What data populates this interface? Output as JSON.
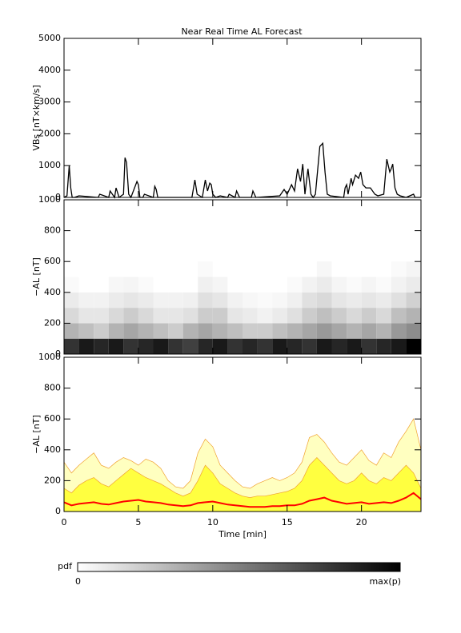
{
  "chart_data": [
    {
      "type": "line",
      "title": "Near Real Time AL Forecast",
      "ylabel": "VBs [nT×km/s]",
      "color": "#000000",
      "xlim": [
        0,
        24
      ],
      "xticks": [
        0,
        5,
        10,
        15,
        20
      ],
      "xtick_labels": false,
      "ylim": [
        0,
        5000
      ],
      "yticks": [
        0,
        1000,
        2000,
        3000,
        4000,
        5000
      ],
      "x": [
        0,
        0.2,
        0.35,
        0.45,
        0.55,
        0.7,
        1.0,
        2.3,
        2.4,
        3.0,
        3.1,
        3.4,
        3.5,
        3.7,
        4.0,
        4.1,
        4.2,
        4.35,
        4.5,
        4.9,
        5.0,
        5.1,
        5.3,
        5.4,
        6.0,
        6.1,
        6.2,
        6.3,
        8.6,
        8.8,
        8.95,
        9.3,
        9.5,
        9.65,
        9.8,
        9.9,
        10.0,
        10.2,
        10.5,
        11.0,
        11.1,
        11.5,
        11.6,
        11.8,
        12.6,
        12.7,
        12.9,
        14.5,
        14.8,
        15.0,
        15.3,
        15.5,
        15.7,
        15.9,
        16.05,
        16.2,
        16.4,
        16.6,
        16.75,
        16.9,
        17.2,
        17.4,
        17.55,
        17.7,
        17.9,
        18.8,
        18.9,
        19.0,
        19.1,
        19.3,
        19.4,
        19.6,
        19.8,
        19.95,
        20.1,
        20.3,
        20.6,
        20.9,
        21.1,
        21.5,
        21.7,
        21.9,
        22.0,
        22.1,
        22.25,
        22.4,
        22.6,
        23.0,
        23.5,
        23.6,
        24.0
      ],
      "values": [
        0,
        50,
        1000,
        300,
        0,
        0,
        50,
        0,
        100,
        0,
        200,
        0,
        300,
        0,
        100,
        1250,
        1100,
        100,
        0,
        500,
        400,
        0,
        0,
        100,
        0,
        350,
        250,
        0,
        0,
        550,
        100,
        0,
        550,
        200,
        450,
        400,
        100,
        0,
        50,
        0,
        100,
        0,
        200,
        0,
        0,
        200,
        0,
        50,
        250,
        100,
        400,
        200,
        900,
        500,
        1050,
        100,
        900,
        100,
        0,
        100,
        1600,
        1700,
        800,
        100,
        50,
        0,
        300,
        400,
        100,
        600,
        400,
        700,
        600,
        800,
        400,
        300,
        300,
        100,
        50,
        100,
        1200,
        800,
        900,
        1050,
        300,
        100,
        50,
        0,
        100,
        0,
        0
      ]
    },
    {
      "type": "heatmap",
      "ylabel": "−AL [nT]",
      "xlim": [
        0,
        24
      ],
      "xticks": [
        0,
        5,
        10,
        15,
        20
      ],
      "xtick_labels": false,
      "ylim": [
        0,
        1000
      ],
      "yticks": [
        0,
        200,
        400,
        600,
        800,
        1000
      ],
      "x_bins": [
        0,
        1,
        2,
        3,
        4,
        5,
        6,
        7,
        8,
        9,
        10,
        11,
        12,
        13,
        14,
        15,
        16,
        17,
        18,
        19,
        20,
        21,
        22,
        23,
        24
      ],
      "y_bins": [
        0,
        100,
        200,
        300,
        400,
        500,
        600
      ],
      "values": [
        [
          0.8,
          0.9,
          0.85,
          0.9,
          0.8,
          0.85,
          0.9,
          0.8,
          0.75,
          0.85,
          0.9,
          0.8,
          0.85,
          0.8,
          0.9,
          0.85,
          0.8,
          0.9,
          0.85,
          0.9,
          0.8,
          0.85,
          0.9,
          1.0
        ],
        [
          0.3,
          0.25,
          0.2,
          0.3,
          0.35,
          0.3,
          0.25,
          0.2,
          0.3,
          0.35,
          0.3,
          0.25,
          0.2,
          0.2,
          0.25,
          0.3,
          0.35,
          0.4,
          0.35,
          0.3,
          0.35,
          0.3,
          0.4,
          0.45
        ],
        [
          0.15,
          0.1,
          0.1,
          0.15,
          0.2,
          0.15,
          0.1,
          0.1,
          0.12,
          0.2,
          0.2,
          0.1,
          0.08,
          0.05,
          0.08,
          0.12,
          0.2,
          0.25,
          0.2,
          0.15,
          0.2,
          0.15,
          0.25,
          0.3
        ],
        [
          0.08,
          0.05,
          0.05,
          0.08,
          0.1,
          0.08,
          0.05,
          0.05,
          0.06,
          0.12,
          0.1,
          0.05,
          0.03,
          0.02,
          0.03,
          0.06,
          0.12,
          0.15,
          0.1,
          0.08,
          0.1,
          0.08,
          0.12,
          0.18
        ],
        [
          0.02,
          0,
          0,
          0.03,
          0.04,
          0.02,
          0,
          0,
          0,
          0.06,
          0.04,
          0,
          0,
          0,
          0,
          0.02,
          0.05,
          0.08,
          0.04,
          0.02,
          0.04,
          0.02,
          0.05,
          0.08
        ],
        [
          0,
          0,
          0,
          0,
          0,
          0,
          0,
          0,
          0,
          0.02,
          0,
          0,
          0,
          0,
          0,
          0,
          0,
          0.03,
          0,
          0,
          0,
          0,
          0.02,
          0.04
        ]
      ],
      "colorbar": {
        "label": "pdf",
        "min_label": "0",
        "max_label": "max(p)"
      }
    },
    {
      "type": "area",
      "ylabel": "−AL [nT]",
      "xlabel": "Time [min]",
      "xlim": [
        0,
        24
      ],
      "xticks": [
        0,
        5,
        10,
        15,
        20
      ],
      "xtick_labels": true,
      "ylim": [
        0,
        1000
      ],
      "yticks": [
        0,
        200,
        400,
        600,
        800,
        1000
      ],
      "x": [
        0,
        0.5,
        1,
        1.5,
        2,
        2.5,
        3,
        3.5,
        4,
        4.5,
        5,
        5.5,
        6,
        6.5,
        7,
        7.5,
        8,
        8.5,
        9,
        9.5,
        10,
        10.5,
        11,
        11.5,
        12,
        12.5,
        13,
        13.5,
        14,
        14.5,
        15,
        15.5,
        16,
        16.5,
        17,
        17.5,
        18,
        18.5,
        19,
        19.5,
        20,
        20.5,
        21,
        21.5,
        22,
        22.5,
        23,
        23.5,
        24
      ],
      "series": [
        {
          "color": "#ffffc0",
          "fill": true,
          "values": [
            320,
            250,
            300,
            340,
            380,
            300,
            280,
            320,
            350,
            330,
            300,
            340,
            320,
            280,
            200,
            160,
            150,
            200,
            380,
            470,
            420,
            300,
            250,
            200,
            160,
            150,
            180,
            200,
            220,
            200,
            220,
            250,
            320,
            480,
            500,
            450,
            380,
            320,
            300,
            350,
            400,
            330,
            300,
            380,
            350,
            450,
            520,
            600,
            400
          ]
        },
        {
          "color": "#ffff40",
          "fill": true,
          "values": [
            150,
            120,
            170,
            200,
            220,
            180,
            160,
            200,
            240,
            280,
            250,
            220,
            200,
            180,
            150,
            120,
            100,
            120,
            200,
            300,
            250,
            180,
            150,
            120,
            100,
            90,
            100,
            100,
            110,
            120,
            130,
            150,
            200,
            300,
            350,
            300,
            250,
            200,
            180,
            200,
            250,
            200,
            180,
            220,
            200,
            250,
            300,
            250,
            150
          ]
        },
        {
          "color": "#ff0000",
          "fill": false,
          "values": [
            60,
            40,
            50,
            55,
            60,
            50,
            45,
            55,
            65,
            70,
            75,
            65,
            60,
            55,
            45,
            40,
            35,
            40,
            55,
            60,
            65,
            55,
            45,
            40,
            35,
            30,
            30,
            30,
            35,
            35,
            40,
            40,
            50,
            70,
            80,
            90,
            70,
            60,
            50,
            55,
            60,
            50,
            55,
            60,
            55,
            70,
            90,
            120,
            80
          ]
        }
      ]
    }
  ]
}
